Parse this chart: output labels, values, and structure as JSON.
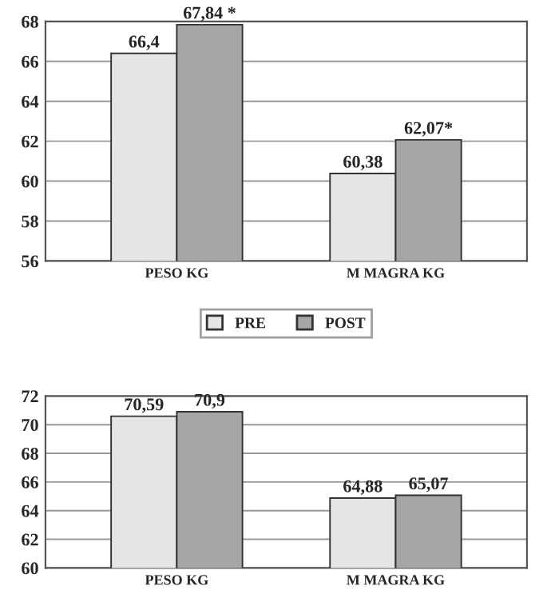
{
  "chart_data": [
    {
      "type": "bar",
      "categories": [
        "PESO KG",
        "M MAGRA KG"
      ],
      "ylim": [
        56,
        68
      ],
      "yticks": [
        56,
        58,
        60,
        62,
        64,
        66,
        68
      ],
      "grid": "y",
      "legend": "bottom",
      "series": [
        {
          "name": "PRE",
          "color": "#e6e6e6",
          "values": [
            66.4,
            60.38
          ],
          "value_labels": [
            "66,4",
            "60,38"
          ]
        },
        {
          "name": "POST",
          "color": "#a6a6a6",
          "values": [
            67.84,
            62.07
          ],
          "value_labels": [
            "67,84 *",
            "62,07*"
          ]
        }
      ]
    },
    {
      "type": "bar",
      "categories": [
        "PESO KG",
        "M MAGRA KG"
      ],
      "ylim": [
        60,
        72
      ],
      "yticks": [
        60,
        62,
        64,
        66,
        68,
        70,
        72
      ],
      "grid": "y",
      "series": [
        {
          "color": "#e6e6e6",
          "values": [
            70.59,
            64.88
          ],
          "value_labels": [
            "70,59",
            "64,88"
          ]
        },
        {
          "color": "#a6a6a6",
          "values": [
            70.9,
            65.07
          ],
          "value_labels": [
            "70,9",
            "65,07"
          ]
        }
      ]
    }
  ]
}
